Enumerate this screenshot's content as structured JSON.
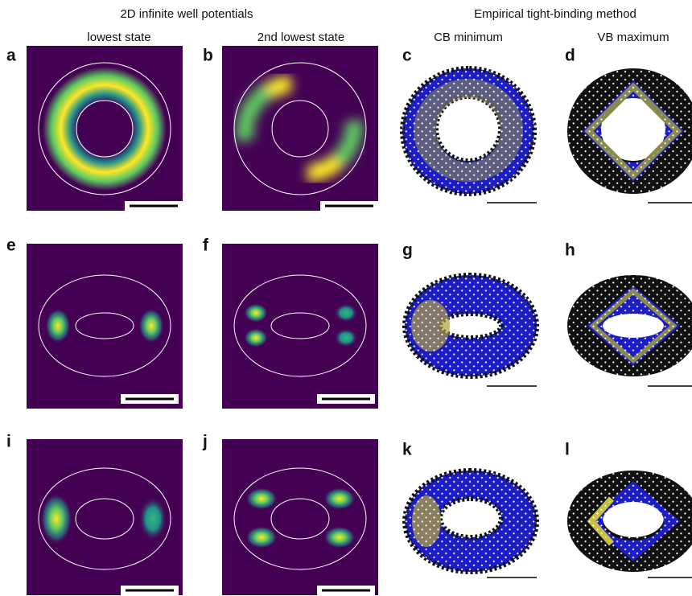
{
  "header": {
    "left_title": "2D infinite well potentials",
    "right_title": "Empirical tight-binding method"
  },
  "columns": [
    "lowest state",
    "2nd lowest state",
    "CB minimum",
    "VB maximum"
  ],
  "panels": [
    "a",
    "b",
    "c",
    "d",
    "e",
    "f",
    "g",
    "h",
    "i",
    "j",
    "k",
    "l"
  ]
}
